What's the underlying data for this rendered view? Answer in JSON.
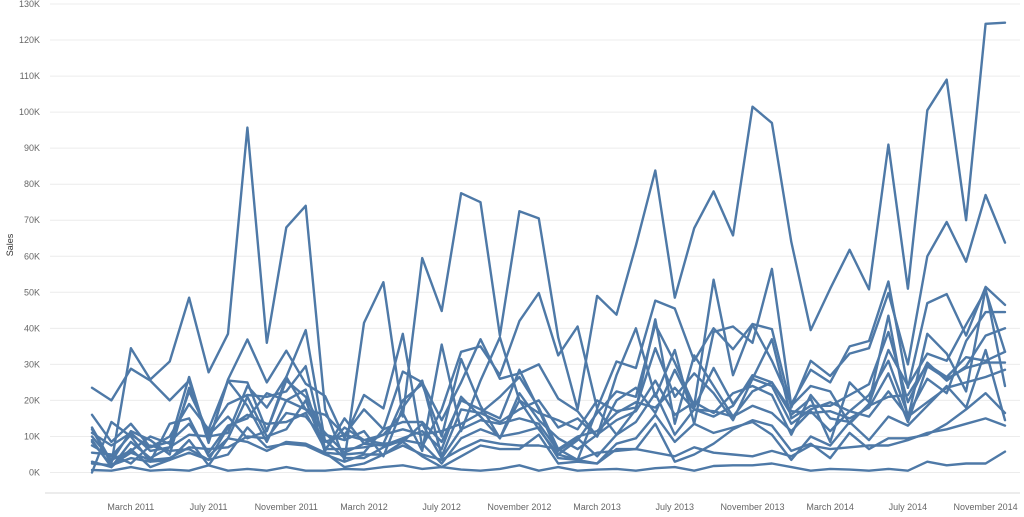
{
  "chart_data": {
    "type": "line",
    "title": "",
    "xlabel": "",
    "ylabel": "Sales",
    "ylim": [
      0,
      130000
    ],
    "grid": true,
    "legend": "none",
    "line_color": "#4e79a7",
    "y_ticks": [
      0,
      10000,
      20000,
      30000,
      40000,
      50000,
      60000,
      70000,
      80000,
      90000,
      100000,
      110000,
      120000,
      130000
    ],
    "y_tick_labels": [
      "0K",
      "10K",
      "20K",
      "30K",
      "40K",
      "50K",
      "60K",
      "70K",
      "80K",
      "90K",
      "100K",
      "110K",
      "120K",
      "130K"
    ],
    "x": [
      "2011-01",
      "2011-02",
      "2011-03",
      "2011-04",
      "2011-05",
      "2011-06",
      "2011-07",
      "2011-08",
      "2011-09",
      "2011-10",
      "2011-11",
      "2011-12",
      "2012-01",
      "2012-02",
      "2012-03",
      "2012-04",
      "2012-05",
      "2012-06",
      "2012-07",
      "2012-08",
      "2012-09",
      "2012-10",
      "2012-11",
      "2012-12",
      "2013-01",
      "2013-02",
      "2013-03",
      "2013-04",
      "2013-05",
      "2013-06",
      "2013-07",
      "2013-08",
      "2013-09",
      "2013-10",
      "2013-11",
      "2013-12",
      "2014-01",
      "2014-02",
      "2014-03",
      "2014-04",
      "2014-05",
      "2014-06",
      "2014-07",
      "2014-08",
      "2014-09",
      "2014-10",
      "2014-11",
      "2014-12"
    ],
    "x_tick_labels": [
      {
        "x": "2011-03",
        "label": "March 2011"
      },
      {
        "x": "2011-07",
        "label": "July 2011"
      },
      {
        "x": "2011-11",
        "label": "November 2011"
      },
      {
        "x": "2012-03",
        "label": "March 2012"
      },
      {
        "x": "2012-07",
        "label": "July 2012"
      },
      {
        "x": "2012-11",
        "label": "November 2012"
      },
      {
        "x": "2013-03",
        "label": "March 2013"
      },
      {
        "x": "2013-07",
        "label": "July 2013"
      },
      {
        "x": "2013-11",
        "label": "November 2013"
      },
      {
        "x": "2014-03",
        "label": "March 2014"
      },
      {
        "x": "2014-07",
        "label": "July 2014"
      },
      {
        "x": "2014-11",
        "label": "November 2014"
      }
    ],
    "series": [
      {
        "values": [
          12000,
          2500,
          34500,
          25800,
          30800,
          48500,
          27800,
          38500,
          95700,
          36000,
          68000,
          74000,
          17500,
          3500,
          41500,
          52800,
          15500,
          59500,
          44800,
          77500,
          75000,
          38000,
          72500,
          70500,
          37500,
          17500,
          49000,
          43800,
          63000,
          83800,
          48500,
          67800,
          78000,
          65800,
          101500,
          97000,
          64000,
          39500,
          51000,
          61800,
          50800,
          91000,
          51000,
          100500,
          109000,
          70000,
          124500,
          124800
        ]
      },
      {
        "values": [
          23500,
          20000,
          28800,
          25500,
          20000,
          25500,
          8200,
          25800,
          36900,
          25000,
          33800,
          24600,
          21200,
          9500,
          21500,
          17800,
          38500,
          7200,
          17500,
          33500,
          35000,
          27000,
          42000,
          49800,
          32500,
          40500,
          17800,
          30800,
          29000,
          47700,
          45500,
          31000,
          40000,
          34200,
          41200,
          39800,
          18000,
          31000,
          26800,
          33000,
          34500,
          49800,
          30000,
          60000,
          69500,
          58500,
          77000,
          63800
        ]
      },
      {
        "values": [
          0,
          14000,
          10000,
          3000,
          13500,
          15000,
          4500,
          9500,
          21000,
          10000,
          12000,
          20000,
          6000,
          15000,
          8000,
          10500,
          16500,
          6000,
          35500,
          11500,
          25500,
          37500,
          20000,
          12000,
          5000,
          9000,
          16500,
          22500,
          21000,
          41000,
          30500,
          18500,
          53500,
          27000,
          41000,
          31000,
          19000,
          28500,
          25000,
          35000,
          36500,
          53000,
          23500,
          47000,
          49500,
          38000,
          51500,
          46500
        ]
      },
      {
        "values": [
          16000,
          8500,
          13500,
          7000,
          10000,
          19000,
          12000,
          25500,
          25000,
          11500,
          26500,
          39500,
          8500,
          10500,
          17500,
          12000,
          28000,
          25000,
          14500,
          25000,
          37000,
          26000,
          27500,
          30000,
          20500,
          17000,
          10000,
          27000,
          40000,
          21000,
          34000,
          13500,
          39000,
          40500,
          36000,
          56500,
          18500,
          24000,
          22500,
          13500,
          19000,
          34000,
          24000,
          33000,
          31000,
          41000,
          50500,
          33500
        ]
      },
      {
        "values": [
          10000,
          3500,
          6000,
          10000,
          8000,
          26500,
          8500,
          25500,
          18500,
          8500,
          20000,
          23000,
          5500,
          5000,
          5500,
          12000,
          14000,
          14000,
          8500,
          20000,
          17500,
          15000,
          28500,
          17500,
          5000,
          3500,
          17500,
          10500,
          17500,
          42500,
          13500,
          32500,
          24000,
          15500,
          22500,
          25000,
          16000,
          20500,
          8500,
          25000,
          19500,
          43500,
          15000,
          38500,
          33000,
          22500,
          51000,
          24000
        ]
      },
      {
        "values": [
          9000,
          1500,
          8500,
          4000,
          7000,
          22500,
          11000,
          19000,
          21500,
          21000,
          22500,
          29500,
          6500,
          12500,
          9000,
          8000,
          20000,
          24500,
          10000,
          31500,
          18500,
          9500,
          20000,
          16500,
          14500,
          12000,
          20000,
          17000,
          18000,
          34500,
          21000,
          27500,
          22000,
          14500,
          26000,
          37000,
          15000,
          18500,
          18500,
          21500,
          24500,
          39000,
          19500,
          30500,
          25500,
          29500,
          38000,
          40000
        ]
      },
      {
        "values": [
          12500,
          3000,
          11500,
          9000,
          5000,
          23500,
          10500,
          15500,
          9500,
          11500,
          25500,
          21000,
          10500,
          9000,
          11500,
          4500,
          18000,
          25500,
          4500,
          17500,
          16500,
          14000,
          17500,
          20000,
          12500,
          15000,
          10000,
          20000,
          23500,
          16500,
          28500,
          18000,
          29000,
          19000,
          26000,
          24000,
          13500,
          17500,
          19500,
          17000,
          21500,
          31000,
          16000,
          26000,
          22000,
          36500,
          44500,
          44500
        ]
      },
      {
        "values": [
          11000,
          7500,
          11000,
          6000,
          7000,
          10500,
          10000,
          11000,
          24000,
          18000,
          26500,
          17500,
          16000,
          10500,
          9000,
          10500,
          12000,
          10500,
          11500,
          13500,
          16500,
          21000,
          26500,
          18000,
          6500,
          10000,
          11500,
          16500,
          19500,
          18000,
          23500,
          17500,
          15500,
          18500,
          27000,
          25000,
          17000,
          16500,
          17000,
          15000,
          18000,
          27500,
          14000,
          29500,
          26000,
          29000,
          30500,
          30500
        ]
      },
      {
        "values": [
          7500,
          4500,
          10500,
          7000,
          8500,
          13500,
          5500,
          13000,
          15000,
          22000,
          20000,
          17500,
          11000,
          5500,
          8000,
          7500,
          9500,
          11500,
          6500,
          21000,
          15500,
          9500,
          22000,
          14500,
          9500,
          6500,
          10500,
          14500,
          17000,
          25500,
          16000,
          19500,
          16500,
          22000,
          24000,
          21500,
          10500,
          21500,
          15000,
          14000,
          18500,
          21000,
          21500,
          30000,
          26500,
          32000,
          31000,
          33500
        ]
      },
      {
        "values": [
          5500,
          5000,
          2500,
          7500,
          6000,
          6500,
          3500,
          12500,
          16000,
          13500,
          14000,
          16500,
          6500,
          6500,
          7000,
          8000,
          8500,
          13500,
          4000,
          12000,
          14500,
          13500,
          15000,
          13500,
          6000,
          9500,
          4500,
          10500,
          14000,
          22000,
          10500,
          17500,
          17000,
          15500,
          18500,
          16500,
          11500,
          17000,
          11500,
          17000,
          15500,
          22500,
          15500,
          19500,
          23500,
          25000,
          26500,
          28500
        ]
      },
      {
        "values": [
          8500,
          2000,
          5500,
          3500,
          4000,
          7000,
          6500,
          7000,
          10000,
          9500,
          16500,
          15500,
          9000,
          4000,
          4000,
          7000,
          9000,
          8000,
          2500,
          9500,
          12000,
          10000,
          11000,
          12500,
          4000,
          3500,
          2500,
          8000,
          9500,
          16000,
          8500,
          13500,
          11000,
          12500,
          14000,
          10500,
          3500,
          10000,
          7500,
          14000,
          9000,
          15500,
          13000,
          18500,
          24000,
          18000,
          34000,
          14500
        ]
      },
      {
        "values": [
          3000,
          1500,
          6500,
          1500,
          3500,
          9000,
          2000,
          9500,
          8500,
          6000,
          8500,
          8000,
          5500,
          1500,
          2500,
          5000,
          8500,
          4500,
          1500,
          4500,
          7500,
          6500,
          6500,
          10500,
          2500,
          3000,
          2500,
          6500,
          6500,
          13500,
          3000,
          5000,
          8000,
          12000,
          14500,
          13000,
          6000,
          8000,
          4000,
          11000,
          6500,
          9500,
          9500,
          10500,
          13500,
          17500,
          22000,
          16500
        ]
      },
      {
        "values": [
          2500,
          2000,
          4000,
          3000,
          3500,
          5500,
          3500,
          5000,
          12500,
          7000,
          8000,
          7500,
          5000,
          3000,
          5000,
          5000,
          7500,
          5000,
          3500,
          6500,
          9000,
          8000,
          7500,
          7500,
          6500,
          3500,
          5500,
          6000,
          6500,
          5500,
          4500,
          7000,
          5500,
          5000,
          4500,
          6000,
          4500,
          7500,
          6500,
          7000,
          7500,
          7500,
          9000,
          11000,
          12000,
          13500,
          15000,
          13000
        ]
      },
      {
        "values": [
          700,
          500,
          1500,
          500,
          800,
          500,
          2000,
          500,
          1000,
          500,
          1500,
          500,
          500,
          1000,
          800,
          1500,
          2000,
          1000,
          1500,
          800,
          500,
          1000,
          2000,
          500,
          1500,
          500,
          800,
          1000,
          500,
          1200,
          1500,
          500,
          1800,
          2000,
          2000,
          2500,
          1500,
          500,
          1000,
          800,
          500,
          1000,
          500,
          3000,
          2000,
          2500,
          2500,
          5800
        ]
      }
    ]
  }
}
